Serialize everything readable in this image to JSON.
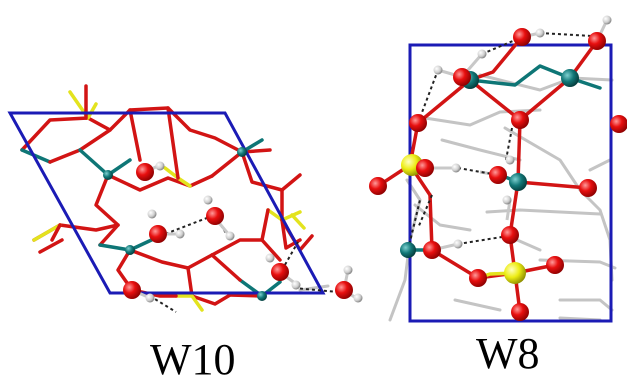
{
  "figure": {
    "left_panel_label": "W10",
    "right_panel_label": "W8"
  },
  "colors": {
    "unit_cell": "#1b1bb5",
    "bond_red": "#d21414",
    "bond_yellow": "#e3e31e",
    "bond_teal": "#0e7676",
    "bond_grey": "#c4c4c4",
    "atom_oxygen": "#e00c0c",
    "atom_sulfur": "#e9e913",
    "atom_metal": "#117070",
    "atom_hydrogen": "#c8c8c8",
    "hbond": "#222222"
  }
}
